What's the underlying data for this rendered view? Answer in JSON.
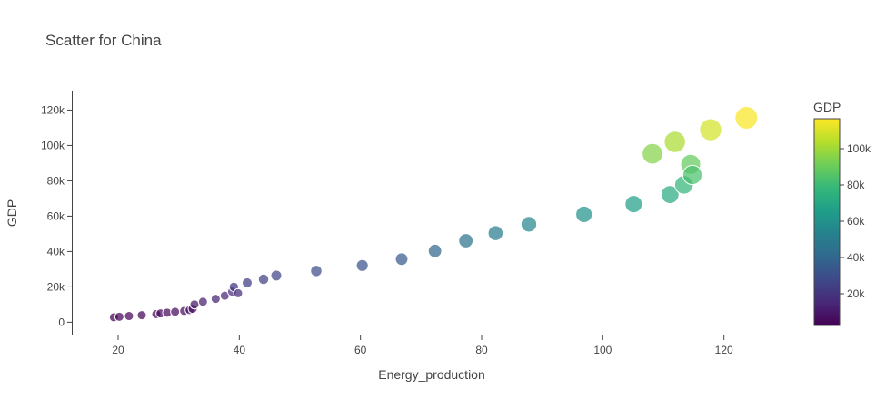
{
  "chart_data": {
    "type": "scatter",
    "title": "Scatter for China",
    "xlabel": "Energy_production",
    "ylabel": "GDP",
    "xlim": [
      12.5,
      131
    ],
    "ylim": [
      -7500,
      131000
    ],
    "x_ticks": [
      {
        "value": 20,
        "label": "20"
      },
      {
        "value": 40,
        "label": "40"
      },
      {
        "value": 60,
        "label": "60"
      },
      {
        "value": 80,
        "label": "80"
      },
      {
        "value": 100,
        "label": "100"
      },
      {
        "value": 120,
        "label": "120"
      }
    ],
    "y_ticks": [
      {
        "value": 0,
        "label": "0"
      },
      {
        "value": 20000,
        "label": "20k"
      },
      {
        "value": 40000,
        "label": "40k"
      },
      {
        "value": 60000,
        "label": "60k"
      },
      {
        "value": 80000,
        "label": "80k"
      },
      {
        "value": 100000,
        "label": "100k"
      },
      {
        "value": 120000,
        "label": "120k"
      }
    ],
    "colorbar": {
      "title": "GDP",
      "colorscale": "Viridis",
      "range": [
        2500,
        116500
      ],
      "ticks": [
        {
          "value": 20000,
          "label": "20k"
        },
        {
          "value": 40000,
          "label": "40k"
        },
        {
          "value": 60000,
          "label": "60k"
        },
        {
          "value": 80000,
          "label": "80k"
        },
        {
          "value": 100000,
          "label": "100k"
        }
      ]
    },
    "points": [
      {
        "x": 19.3,
        "y": 2800
      },
      {
        "x": 20.2,
        "y": 3100
      },
      {
        "x": 21.8,
        "y": 3500
      },
      {
        "x": 23.9,
        "y": 4000
      },
      {
        "x": 26.3,
        "y": 4600
      },
      {
        "x": 27.0,
        "y": 5000
      },
      {
        "x": 28.1,
        "y": 5400
      },
      {
        "x": 29.4,
        "y": 5900
      },
      {
        "x": 30.9,
        "y": 6400
      },
      {
        "x": 31.8,
        "y": 6900
      },
      {
        "x": 32.3,
        "y": 7600
      },
      {
        "x": 32.6,
        "y": 10100
      },
      {
        "x": 34.0,
        "y": 11600
      },
      {
        "x": 36.1,
        "y": 13200
      },
      {
        "x": 37.6,
        "y": 15000
      },
      {
        "x": 38.8,
        "y": 17300
      },
      {
        "x": 39.1,
        "y": 20000
      },
      {
        "x": 39.8,
        "y": 16400
      },
      {
        "x": 41.3,
        "y": 22300
      },
      {
        "x": 44.0,
        "y": 24300
      },
      {
        "x": 46.1,
        "y": 26400
      },
      {
        "x": 52.7,
        "y": 29000
      },
      {
        "x": 60.3,
        "y": 32100
      },
      {
        "x": 66.8,
        "y": 35700
      },
      {
        "x": 72.3,
        "y": 40300
      },
      {
        "x": 77.4,
        "y": 46100
      },
      {
        "x": 82.3,
        "y": 50400
      },
      {
        "x": 87.8,
        "y": 55400
      },
      {
        "x": 96.9,
        "y": 61000
      },
      {
        "x": 105.1,
        "y": 66800
      },
      {
        "x": 108.2,
        "y": 95300
      },
      {
        "x": 111.1,
        "y": 72200
      },
      {
        "x": 111.9,
        "y": 102000
      },
      {
        "x": 113.4,
        "y": 77700
      },
      {
        "x": 114.5,
        "y": 89300
      },
      {
        "x": 114.8,
        "y": 83300
      },
      {
        "x": 117.8,
        "y": 108900
      },
      {
        "x": 123.7,
        "y": 115600
      }
    ]
  }
}
